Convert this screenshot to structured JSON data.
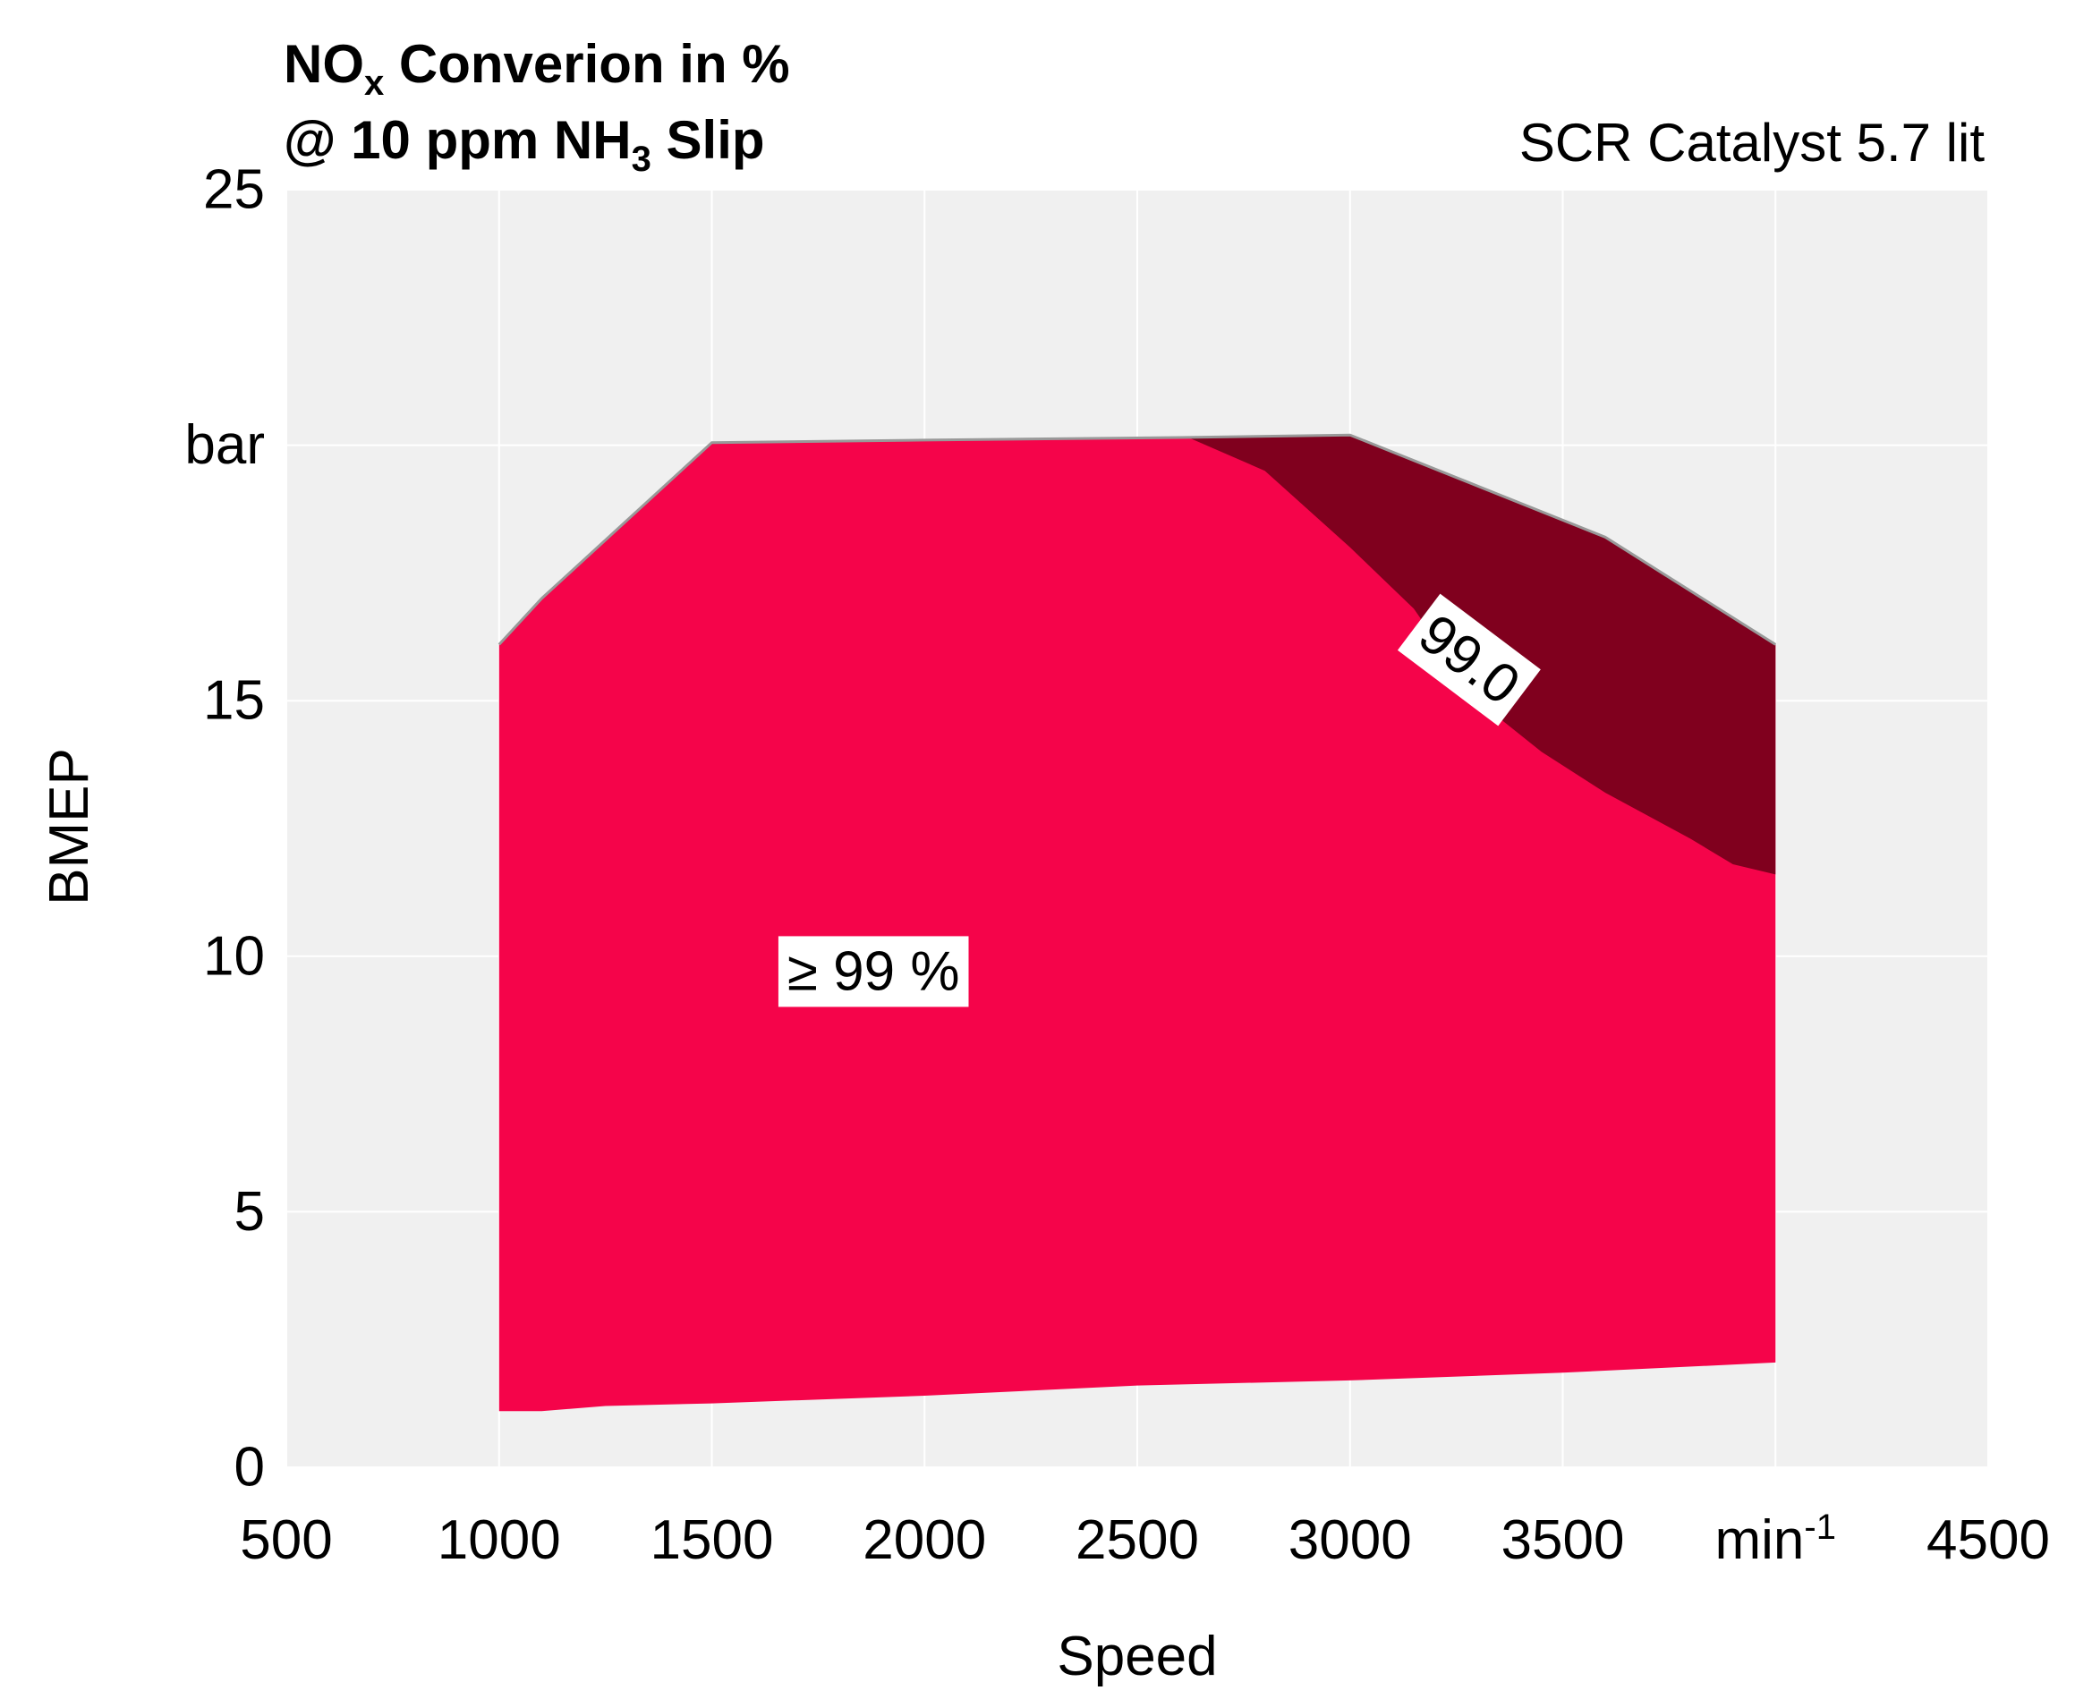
{
  "chart_data": {
    "type": "contour",
    "title": {
      "line1_prefix": "NO",
      "line1_sub": "x",
      "line1_suffix": " Converion in %",
      "line2_prefix": "@ 10 ppm NH",
      "line2_sub": "3",
      "line2_suffix": " Slip"
    },
    "subtitle": "SCR Catalyst 5.7 lit",
    "xlabel": "Speed",
    "ylabel": "BMEP",
    "xlim": [
      500,
      4500
    ],
    "ylim": [
      0,
      25
    ],
    "x_ticks": [
      {
        "value": 500,
        "label": "500"
      },
      {
        "value": 1000,
        "label": "1000"
      },
      {
        "value": 1500,
        "label": "1500"
      },
      {
        "value": 2000,
        "label": "2000"
      },
      {
        "value": 2500,
        "label": "2500"
      },
      {
        "value": 3000,
        "label": "3000"
      },
      {
        "value": 3500,
        "label": "3500"
      },
      {
        "value": 4000,
        "label": "min",
        "sup": "-1"
      },
      {
        "value": 4500,
        "label": "4500"
      }
    ],
    "y_ticks": [
      {
        "value": 0,
        "label": "0"
      },
      {
        "value": 5,
        "label": "5"
      },
      {
        "value": 10,
        "label": "10"
      },
      {
        "value": 15,
        "label": "15"
      },
      {
        "value": 20,
        "label": "bar"
      },
      {
        "value": 25,
        "label": "25"
      }
    ],
    "grid": true,
    "colors": {
      "panel_background": "#f0f0f0",
      "gridline": "#ffffff",
      "region_high": "#f5044a",
      "region_top": "#80001e",
      "outline": "#999999",
      "label_box": "#ffffff"
    },
    "regions": [
      {
        "name": "high",
        "color": "#f5044a",
        "points": [
          [
            1000,
            1.1
          ],
          [
            1100,
            1.1
          ],
          [
            1250,
            1.2
          ],
          [
            1500,
            1.25
          ],
          [
            2000,
            1.4
          ],
          [
            2500,
            1.6
          ],
          [
            3000,
            1.7
          ],
          [
            3500,
            1.85
          ],
          [
            4000,
            2.05
          ],
          [
            4000,
            16.1
          ],
          [
            3600,
            18.2
          ],
          [
            3000,
            20.2
          ],
          [
            2600,
            20.15
          ],
          [
            2000,
            20.1
          ],
          [
            1500,
            20.05
          ],
          [
            1100,
            17.0
          ],
          [
            1000,
            16.1
          ]
        ]
      },
      {
        "name": "top",
        "color": "#80001e",
        "points": [
          [
            2620,
            20.15
          ],
          [
            2800,
            19.5
          ],
          [
            3000,
            18.0
          ],
          [
            3150,
            16.8
          ],
          [
            3300,
            15.0
          ],
          [
            3450,
            14.0
          ],
          [
            3600,
            13.2
          ],
          [
            3800,
            12.3
          ],
          [
            3900,
            11.8
          ],
          [
            4000,
            11.6
          ],
          [
            4000,
            16.1
          ],
          [
            3600,
            18.2
          ],
          [
            3000,
            20.2
          ]
        ]
      }
    ],
    "annotations": [
      {
        "text": "99.0",
        "x": 3280,
        "y": 15.8,
        "rotation_deg": 37
      },
      {
        "text": "≥ 99 %",
        "x": 1880,
        "y": 9.7,
        "rotation_deg": 0
      }
    ]
  }
}
